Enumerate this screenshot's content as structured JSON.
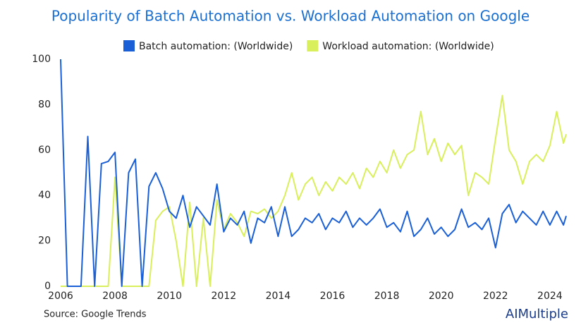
{
  "chart_data": {
    "type": "line",
    "title": "Popularity of Batch Automation vs. Workload Automation on Google",
    "source": "Source: Google Trends",
    "brand": "AIMultiple",
    "legend": "top",
    "grid": false,
    "xlim": [
      2006,
      2024.6
    ],
    "xticks": [
      2006,
      2008,
      2010,
      2012,
      2014,
      2016,
      2018,
      2020,
      2022,
      2024
    ],
    "ylim": [
      0,
      100
    ],
    "yticks": [
      0,
      20,
      40,
      60,
      80,
      100
    ],
    "x": [
      2006,
      2006.25,
      2006.5,
      2006.75,
      2007,
      2007.25,
      2007.5,
      2007.75,
      2008,
      2008.25,
      2008.5,
      2008.75,
      2009,
      2009.25,
      2009.5,
      2009.75,
      2010,
      2010.25,
      2010.5,
      2010.75,
      2011,
      2011.25,
      2011.5,
      2011.75,
      2012,
      2012.25,
      2012.5,
      2012.75,
      2013,
      2013.25,
      2013.5,
      2013.75,
      2014,
      2014.25,
      2014.5,
      2014.75,
      2015,
      2015.25,
      2015.5,
      2015.75,
      2016,
      2016.25,
      2016.5,
      2016.75,
      2017,
      2017.25,
      2017.5,
      2017.75,
      2018,
      2018.25,
      2018.5,
      2018.75,
      2019,
      2019.25,
      2019.5,
      2019.75,
      2020,
      2020.25,
      2020.5,
      2020.75,
      2021,
      2021.25,
      2021.5,
      2021.75,
      2022,
      2022.25,
      2022.5,
      2022.75,
      2023,
      2023.25,
      2023.5,
      2023.75,
      2024,
      2024.25,
      2024.5,
      2024.6
    ],
    "series": [
      {
        "name": "Batch automation: (Worldwide)",
        "color": "#1a5fd6",
        "values": [
          100,
          0,
          0,
          0,
          66,
          0,
          54,
          55,
          59,
          0,
          50,
          56,
          0,
          44,
          50,
          43,
          33,
          30,
          40,
          26,
          35,
          31,
          27,
          45,
          24,
          30,
          27,
          33,
          19,
          30,
          28,
          35,
          22,
          35,
          22,
          25,
          30,
          28,
          32,
          25,
          30,
          28,
          33,
          26,
          30,
          27,
          30,
          34,
          26,
          28,
          24,
          33,
          22,
          25,
          30,
          23,
          26,
          22,
          25,
          34,
          26,
          28,
          25,
          30,
          17,
          32,
          36,
          28,
          33,
          30,
          27,
          33,
          27,
          33,
          27,
          31
        ]
      },
      {
        "name": "Workload automation: (Worldwide)",
        "color": "#d9ef5c",
        "values": [
          0,
          0,
          0,
          0,
          0,
          0,
          0,
          0,
          48,
          0,
          0,
          0,
          0,
          0,
          29,
          33,
          35,
          20,
          0,
          37,
          0,
          30,
          0,
          38,
          25,
          32,
          28,
          22,
          33,
          32,
          34,
          30,
          33,
          40,
          50,
          38,
          45,
          48,
          40,
          46,
          42,
          48,
          45,
          50,
          43,
          52,
          48,
          55,
          50,
          60,
          52,
          58,
          60,
          77,
          58,
          65,
          55,
          63,
          58,
          62,
          40,
          50,
          48,
          45,
          65,
          84,
          60,
          55,
          45,
          55,
          58,
          55,
          62,
          77,
          63,
          67
        ]
      }
    ]
  }
}
